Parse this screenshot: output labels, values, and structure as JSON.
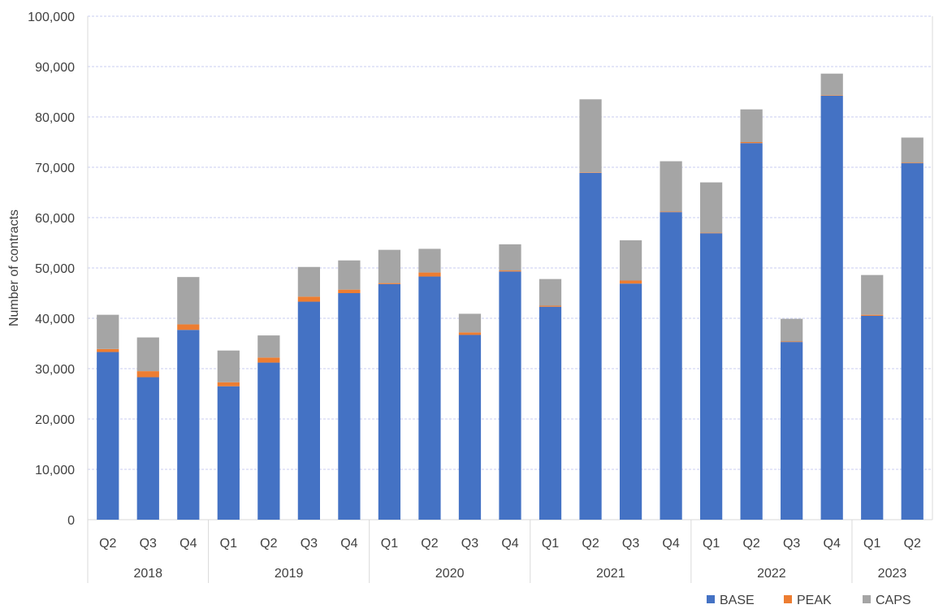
{
  "chart_data": {
    "type": "bar",
    "stacked": true,
    "title": "",
    "xlabel": "",
    "ylabel": "Number of contracts",
    "ylim": [
      0,
      100000
    ],
    "yticks": [
      0,
      10000,
      20000,
      30000,
      40000,
      50000,
      60000,
      70000,
      80000,
      90000,
      100000
    ],
    "ytick_labels": [
      "0",
      "10,000",
      "20,000",
      "30,000",
      "40,000",
      "50,000",
      "60,000",
      "70,000",
      "80,000",
      "90,000",
      "100,000"
    ],
    "grid": true,
    "legend_position": "bottom-right",
    "categories": [
      "Q2",
      "Q3",
      "Q4",
      "Q1",
      "Q2",
      "Q3",
      "Q4",
      "Q1",
      "Q2",
      "Q3",
      "Q4",
      "Q1",
      "Q2",
      "Q3",
      "Q4",
      "Q1",
      "Q2",
      "Q3",
      "Q4",
      "Q1",
      "Q2"
    ],
    "groups": [
      {
        "label": "2018",
        "count": 3
      },
      {
        "label": "2019",
        "count": 4
      },
      {
        "label": "2020",
        "count": 4
      },
      {
        "label": "2021",
        "count": 4
      },
      {
        "label": "2022",
        "count": 4
      },
      {
        "label": "2023",
        "count": 2
      }
    ],
    "series": [
      {
        "name": "BASE",
        "color": "#4472C4",
        "values": [
          33300,
          28300,
          37700,
          26500,
          31200,
          43300,
          45000,
          46800,
          48300,
          36700,
          49300,
          42300,
          68900,
          46900,
          61100,
          56900,
          74800,
          35300,
          84200,
          40500,
          70800
        ]
      },
      {
        "name": "PEAK",
        "color": "#ED7D31",
        "values": [
          600,
          1200,
          1100,
          800,
          1000,
          1000,
          700,
          200,
          800,
          500,
          200,
          200,
          100,
          600,
          100,
          100,
          200,
          100,
          100,
          200,
          100
        ]
      },
      {
        "name": "CAPS",
        "color": "#A5A5A5",
        "values": [
          6800,
          6700,
          9400,
          6300,
          4400,
          5900,
          5800,
          6600,
          4700,
          3700,
          5200,
          5300,
          14500,
          8000,
          10000,
          10000,
          6500,
          4500,
          4300,
          7900,
          5000
        ]
      }
    ]
  }
}
